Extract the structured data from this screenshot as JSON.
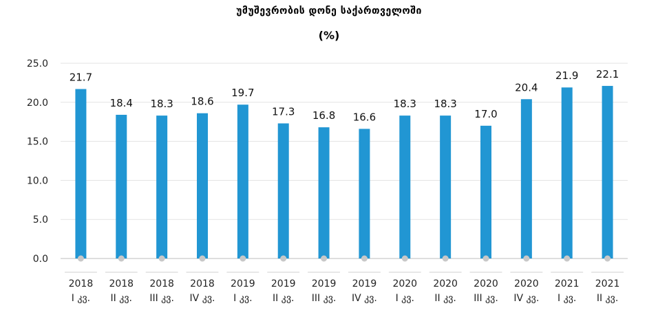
{
  "chart_data": {
    "type": "bar",
    "title": "უმუშევრობის დონე საქართველოში",
    "subtitle": "(%)",
    "categories": [
      [
        "2018",
        "I კვ."
      ],
      [
        "2018",
        "II კვ."
      ],
      [
        "2018",
        "III კვ."
      ],
      [
        "2018",
        "IV კვ."
      ],
      [
        "2019",
        "I კვ."
      ],
      [
        "2019",
        "II კვ."
      ],
      [
        "2019",
        "III კვ."
      ],
      [
        "2019",
        "IV კვ."
      ],
      [
        "2020",
        "I კვ."
      ],
      [
        "2020",
        "II კვ."
      ],
      [
        "2020",
        "III კვ."
      ],
      [
        "2020",
        "IV კვ."
      ],
      [
        "2021",
        "I კვ."
      ],
      [
        "2021",
        "II კვ."
      ]
    ],
    "values": [
      21.7,
      18.4,
      18.3,
      18.6,
      19.7,
      17.3,
      16.8,
      16.6,
      18.3,
      18.3,
      17.0,
      20.4,
      21.9,
      22.1
    ],
    "value_labels": [
      "21.7",
      "18.4",
      "18.3",
      "18.6",
      "19.7",
      "17.3",
      "16.8",
      "16.6",
      "18.3",
      "18.3",
      "17.0",
      "20.4",
      "21.9",
      "22.1"
    ],
    "yticks": [
      "0.0",
      "5.0",
      "10.0",
      "15.0",
      "20.0",
      "25.0"
    ],
    "ylim": [
      0,
      25
    ],
    "grid": true,
    "bar_color": "#2196d3",
    "marker_color": "#c8c8c8"
  }
}
